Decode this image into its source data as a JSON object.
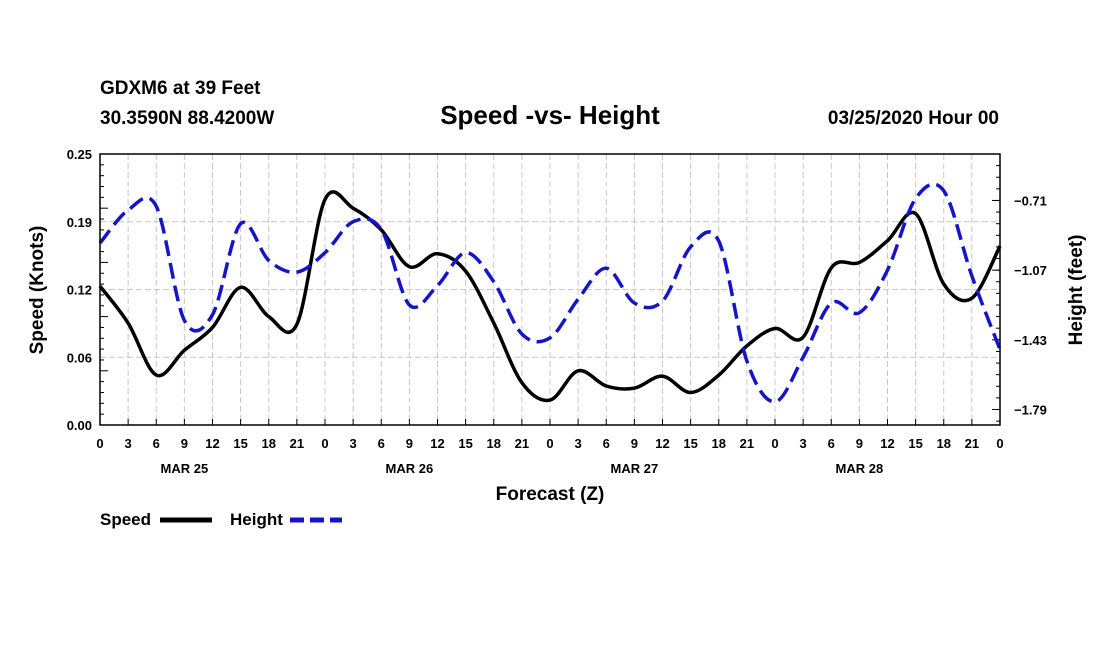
{
  "header": {
    "station": "GDXM6 at 39 Feet",
    "coords": "30.3590N 88.4200W",
    "title": "Speed -vs- Height",
    "date": "03/25/2020 Hour 00"
  },
  "legend": {
    "speed_label": "Speed",
    "height_label": "Height"
  },
  "colors": {
    "speed": "#000000",
    "height": "#1515c8",
    "grid": "#c8c8c8"
  },
  "chart_data": {
    "type": "line",
    "title": "Speed -vs- Height",
    "xlabel": "Forecast (Z)",
    "ylabel": "Speed (Knots)",
    "y2label": "Height (feet)",
    "x_range_hours": [
      0,
      96
    ],
    "x_ticks": [
      {
        "h": 0,
        "label": "0"
      },
      {
        "h": 3,
        "label": "3"
      },
      {
        "h": 6,
        "label": "6"
      },
      {
        "h": 9,
        "label": "9"
      },
      {
        "h": 12,
        "label": "12"
      },
      {
        "h": 15,
        "label": "15"
      },
      {
        "h": 18,
        "label": "18"
      },
      {
        "h": 21,
        "label": "21"
      },
      {
        "h": 24,
        "label": "0"
      },
      {
        "h": 27,
        "label": "3"
      },
      {
        "h": 30,
        "label": "6"
      },
      {
        "h": 33,
        "label": "9"
      },
      {
        "h": 36,
        "label": "12"
      },
      {
        "h": 39,
        "label": "15"
      },
      {
        "h": 42,
        "label": "18"
      },
      {
        "h": 45,
        "label": "21"
      },
      {
        "h": 48,
        "label": "0"
      },
      {
        "h": 51,
        "label": "3"
      },
      {
        "h": 54,
        "label": "6"
      },
      {
        "h": 57,
        "label": "9"
      },
      {
        "h": 60,
        "label": "12"
      },
      {
        "h": 63,
        "label": "15"
      },
      {
        "h": 66,
        "label": "18"
      },
      {
        "h": 69,
        "label": "21"
      },
      {
        "h": 72,
        "label": "0"
      },
      {
        "h": 75,
        "label": "3"
      },
      {
        "h": 78,
        "label": "6"
      },
      {
        "h": 81,
        "label": "9"
      },
      {
        "h": 84,
        "label": "12"
      },
      {
        "h": 87,
        "label": "15"
      },
      {
        "h": 90,
        "label": "18"
      },
      {
        "h": 93,
        "label": "21"
      },
      {
        "h": 96,
        "label": "0"
      }
    ],
    "day_labels": [
      {
        "h": 9,
        "label": "MAR 25"
      },
      {
        "h": 33,
        "label": "MAR 26"
      },
      {
        "h": 57,
        "label": "MAR 27"
      },
      {
        "h": 81,
        "label": "MAR 28"
      }
    ],
    "y_left": {
      "range": [
        0.0,
        0.25
      ],
      "ticks": [
        {
          "v": 0.0,
          "label": "0.00"
        },
        {
          "v": 0.0625,
          "label": "0.06"
        },
        {
          "v": 0.125,
          "label": "0.12"
        },
        {
          "v": 0.1875,
          "label": "0.19"
        },
        {
          "v": 0.25,
          "label": "0.25"
        }
      ]
    },
    "y_right": {
      "range": [
        -1.87,
        -0.47
      ],
      "ticks": [
        {
          "v": -0.71,
          "label": "−0.71"
        },
        {
          "v": -1.07,
          "label": "−1.07"
        },
        {
          "v": -1.43,
          "label": "−1.43"
        },
        {
          "v": -1.79,
          "label": "−1.79"
        }
      ]
    },
    "series": [
      {
        "name": "Speed",
        "axis": "left",
        "style": "solid",
        "hours": [
          0,
          3,
          6,
          9,
          12,
          15,
          18,
          21,
          24,
          27,
          30,
          33,
          36,
          39,
          42,
          45,
          48,
          51,
          54,
          57,
          60,
          63,
          66,
          69,
          72,
          75,
          78,
          81,
          84,
          87,
          90,
          93,
          96
        ],
        "values": [
          0.128,
          0.094,
          0.046,
          0.069,
          0.09,
          0.127,
          0.1,
          0.093,
          0.208,
          0.2,
          0.18,
          0.146,
          0.158,
          0.142,
          0.094,
          0.039,
          0.023,
          0.05,
          0.036,
          0.034,
          0.045,
          0.03,
          0.046,
          0.073,
          0.089,
          0.081,
          0.145,
          0.15,
          0.17,
          0.195,
          0.13,
          0.117,
          0.165
        ]
      },
      {
        "name": "Height",
        "axis": "right",
        "style": "dashed",
        "hours": [
          0,
          3,
          6,
          9,
          12,
          15,
          18,
          21,
          24,
          27,
          30,
          33,
          36,
          39,
          42,
          45,
          48,
          51,
          54,
          57,
          60,
          63,
          66,
          69,
          72,
          75,
          78,
          81,
          84,
          87,
          90,
          93,
          96
        ],
        "values": [
          -0.93,
          -0.76,
          -0.74,
          -1.33,
          -1.3,
          -0.83,
          -1.02,
          -1.08,
          -0.98,
          -0.82,
          -0.86,
          -1.25,
          -1.15,
          -0.98,
          -1.13,
          -1.4,
          -1.42,
          -1.22,
          -1.06,
          -1.24,
          -1.23,
          -0.95,
          -0.92,
          -1.54,
          -1.75,
          -1.52,
          -1.24,
          -1.29,
          -1.07,
          -0.7,
          -0.66,
          -1.1,
          -1.48
        ]
      }
    ]
  }
}
